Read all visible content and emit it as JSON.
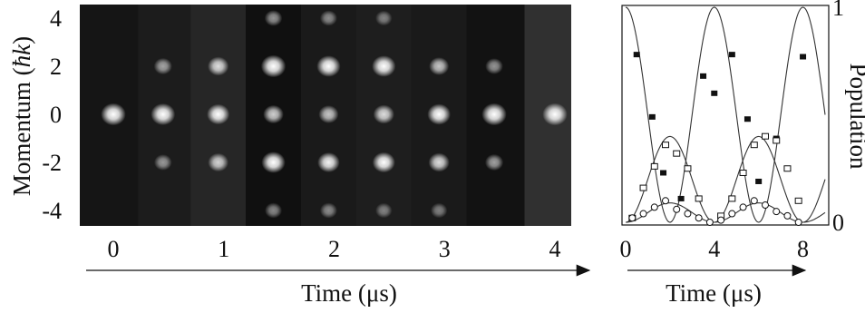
{
  "chart_data": [
    {
      "type": "image-strip",
      "ylabel_prefix": "Momentum (",
      "ylabel_unit": "ħk",
      "ylabel_suffix": ")",
      "xlabel": "Time (μs)",
      "yticks": [
        4,
        2,
        0,
        -2,
        -4
      ],
      "xticks": [
        0,
        1,
        2,
        3,
        4
      ],
      "xlim": [
        0,
        4
      ],
      "ylim": [
        -5,
        5
      ],
      "frames": [
        {
          "t": 0.0,
          "bg": "#151515",
          "orders": {
            "0": 0.95
          }
        },
        {
          "t": 0.45,
          "bg": "#1c1c1c",
          "orders": {
            "2": 0.35,
            "0": 0.9,
            "-2": 0.3
          }
        },
        {
          "t": 0.95,
          "bg": "#262626",
          "orders": {
            "2": 0.6,
            "0": 0.75,
            "-2": 0.55
          }
        },
        {
          "t": 1.45,
          "bg": "#101010",
          "orders": {
            "4": 0.3,
            "2": 0.95,
            "0": 0.55,
            "-2": 0.85,
            "-4": 0.25
          }
        },
        {
          "t": 1.95,
          "bg": "#1a1a1a",
          "orders": {
            "4": 0.25,
            "2": 0.85,
            "0": 0.5,
            "-2": 0.7,
            "-4": 0.25
          }
        },
        {
          "t": 2.45,
          "bg": "#1e1e1e",
          "orders": {
            "4": 0.2,
            "2": 0.85,
            "0": 0.6,
            "-2": 0.75,
            "-4": 0.2
          }
        },
        {
          "t": 2.95,
          "bg": "#1a1a1a",
          "orders": {
            "2": 0.5,
            "0": 0.8,
            "-2": 0.6,
            "-4": 0.2
          }
        },
        {
          "t": 3.45,
          "bg": "#121212",
          "orders": {
            "2": 0.3,
            "0": 0.95,
            "-2": 0.35
          }
        },
        {
          "t": 4.0,
          "bg": "#303030",
          "orders": {
            "0": 0.95
          }
        }
      ]
    },
    {
      "type": "scatter",
      "xlabel": "Time (μs)",
      "ylabel": "Population",
      "xticks": [
        0,
        4,
        8
      ],
      "yticks": [
        0,
        1
      ],
      "xlim": [
        0,
        9
      ],
      "ylim": [
        0,
        1
      ],
      "series": [
        {
          "marker": "filled-square",
          "x": [
            0.5,
            1.2,
            1.7,
            2.5,
            3.5,
            4.0,
            4.8,
            5.5,
            6.0,
            6.8,
            8.0
          ],
          "y": [
            0.78,
            0.49,
            0.23,
            0.11,
            0.68,
            0.6,
            0.78,
            0.48,
            0.19,
            0.39,
            0.77
          ]
        },
        {
          "marker": "open-square",
          "x": [
            0.3,
            0.8,
            1.3,
            1.8,
            2.3,
            2.8,
            3.3,
            4.3,
            4.8,
            5.3,
            5.8,
            6.3,
            6.8,
            7.3,
            7.8
          ],
          "y": [
            0.02,
            0.16,
            0.26,
            0.36,
            0.32,
            0.25,
            0.11,
            0.03,
            0.11,
            0.23,
            0.36,
            0.4,
            0.38,
            0.25,
            0.1
          ]
        },
        {
          "marker": "open-circle",
          "x": [
            0.3,
            0.8,
            1.3,
            1.8,
            2.3,
            2.8,
            3.3,
            3.8,
            4.3,
            4.8,
            5.3,
            5.8,
            6.3,
            6.8,
            7.3,
            7.8
          ],
          "y": [
            0.02,
            0.04,
            0.07,
            0.1,
            0.06,
            0.04,
            0.02,
            0.0,
            0.01,
            0.04,
            0.07,
            0.1,
            0.08,
            0.05,
            0.03,
            0.0
          ]
        }
      ]
    }
  ]
}
